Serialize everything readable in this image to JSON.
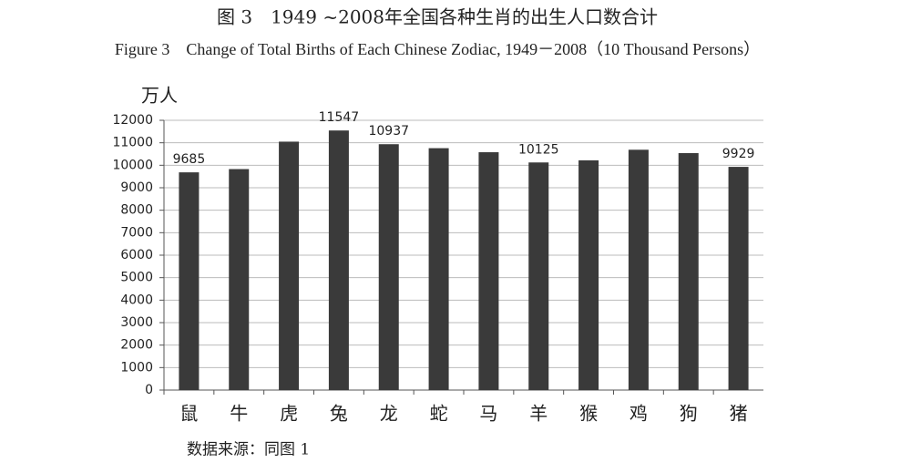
{
  "chart_data": {
    "type": "bar",
    "title": "图 3　1949 ~2008年全国各种生肖的出生人口数合计",
    "subtitle": "Figure 3　Change of Total Births of Each Chinese Zodiac, 1949－2008（10 Thousand Persons）",
    "y_label": "万人",
    "source": "数据来源：同图 1",
    "categories": [
      "鼠",
      "牛",
      "虎",
      "兔",
      "龙",
      "蛇",
      "马",
      "羊",
      "猴",
      "鸡",
      "狗",
      "猪"
    ],
    "values": [
      9685,
      9830,
      11050,
      11547,
      10937,
      10760,
      10580,
      10125,
      10220,
      10690,
      10540,
      9929
    ],
    "value_labels": [
      "9685",
      null,
      null,
      "11547",
      "10937",
      null,
      null,
      "10125",
      null,
      null,
      null,
      "9929"
    ],
    "color": "#3a3a3a",
    "ylim": [
      0,
      12000
    ],
    "yticks": [
      0,
      1000,
      2000,
      3000,
      4000,
      5000,
      6000,
      7000,
      8000,
      9000,
      10000,
      11000,
      12000
    ],
    "grid": true
  }
}
